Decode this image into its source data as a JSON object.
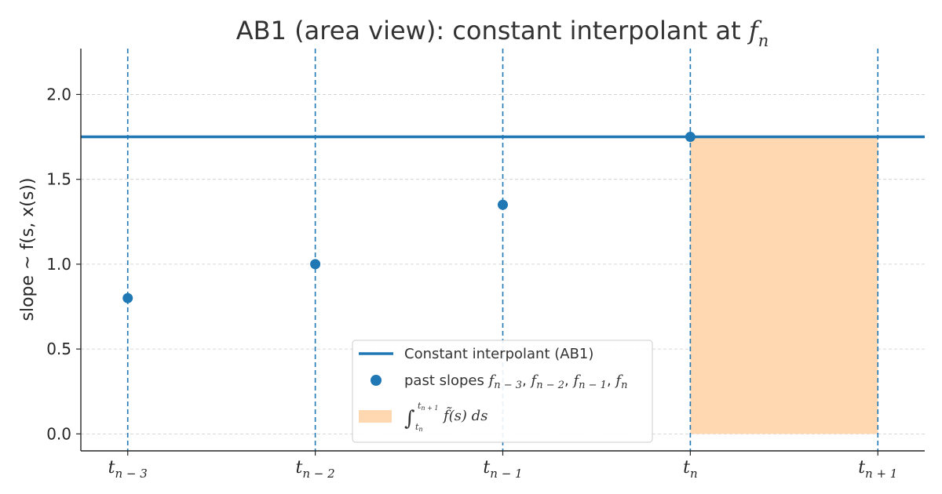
{
  "chart_data": {
    "type": "line",
    "title_main": "AB1 (area view): constant interpolant at ",
    "title_math": {
      "base": "f",
      "sub": "n"
    },
    "xlabel": "",
    "ylabel": "slope ~ f(s, x(s))",
    "x": [
      0,
      1,
      2,
      3,
      4
    ],
    "x_tick_labels": [
      {
        "base": "t",
        "sub": "n − 3"
      },
      {
        "base": "t",
        "sub": "n − 2"
      },
      {
        "base": "t",
        "sub": "n − 1"
      },
      {
        "base": "t",
        "sub": "n"
      },
      {
        "base": "t",
        "sub": "n + 1"
      }
    ],
    "xlim": [
      -0.25,
      4.25
    ],
    "ylim": [
      -0.1,
      2.27
    ],
    "y_ticks": [
      0.0,
      0.5,
      1.0,
      1.5,
      2.0
    ],
    "y_tick_labels": [
      "0.0",
      "0.5",
      "1.0",
      "1.5",
      "2.0"
    ],
    "grid": "horizontal dashed",
    "vertical_markers_x": [
      0,
      1,
      2,
      3,
      4
    ],
    "series": [
      {
        "name": "Constant interpolant (AB1)",
        "kind": "hline",
        "y": 1.75,
        "color": "#1f77b4"
      },
      {
        "name": "past slopes",
        "kind": "scatter",
        "x": [
          0,
          1,
          2,
          3
        ],
        "y": [
          0.8,
          1.0,
          1.35,
          1.75
        ],
        "color": "#1f77b4"
      },
      {
        "name": "integral",
        "kind": "area",
        "x_from": 3,
        "x_to": 4,
        "y_from": 0,
        "y_to": 1.75,
        "color": "#ffd8b1"
      }
    ],
    "legend": {
      "placement": "lower-center",
      "entries": [
        {
          "label": "Constant interpolant (AB1)"
        },
        {
          "label_prefix": "past slopes ",
          "math_terms": [
            {
              "base": "f",
              "sub": "n − 3"
            },
            {
              "base": "f",
              "sub": "n − 2"
            },
            {
              "base": "f",
              "sub": "n − 1"
            },
            {
              "base": "f",
              "sub": "n"
            }
          ]
        },
        {
          "integral": {
            "lower": "t",
            "lower_sub": "n",
            "upper": "t",
            "upper_sub": "n + 1",
            "body": "f̃(s) ds"
          }
        }
      ]
    }
  }
}
